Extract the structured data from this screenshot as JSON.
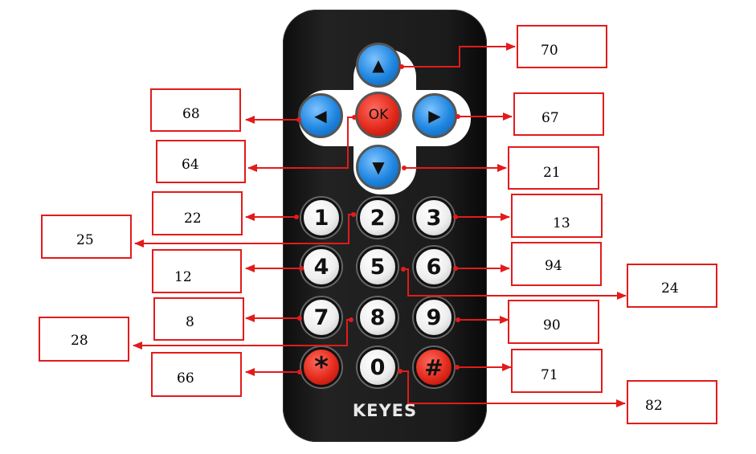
{
  "brand": "KEYES",
  "buttons": {
    "up": {
      "glyph": "▲",
      "code": "70"
    },
    "left": {
      "glyph": "◀",
      "code": "68"
    },
    "ok": {
      "label": "OK",
      "code": "64"
    },
    "right": {
      "glyph": "▶",
      "code": "67"
    },
    "down": {
      "glyph": "▼",
      "code": "21"
    },
    "n1": {
      "label": "1",
      "code": "22"
    },
    "n2": {
      "label": "2",
      "code": "25"
    },
    "n3": {
      "label": "3",
      "code": "13"
    },
    "n4": {
      "label": "4",
      "code": "12"
    },
    "n5": {
      "label": "5",
      "code": "24"
    },
    "n6": {
      "label": "6",
      "code": "94"
    },
    "n7": {
      "label": "7",
      "code": "8"
    },
    "n8": {
      "label": "8",
      "code": "28"
    },
    "n9": {
      "label": "9",
      "code": "90"
    },
    "star": {
      "label": "*",
      "code": "66"
    },
    "n0": {
      "label": "0",
      "code": "82"
    },
    "hash": {
      "label": "#",
      "code": "71"
    }
  },
  "colors": {
    "arrow_line": "#e31b1b",
    "box_border": "#e31b1b",
    "remote_body": "#1a1a1a",
    "blue_button": "#1f86e0",
    "red_button": "#e22a1c"
  }
}
